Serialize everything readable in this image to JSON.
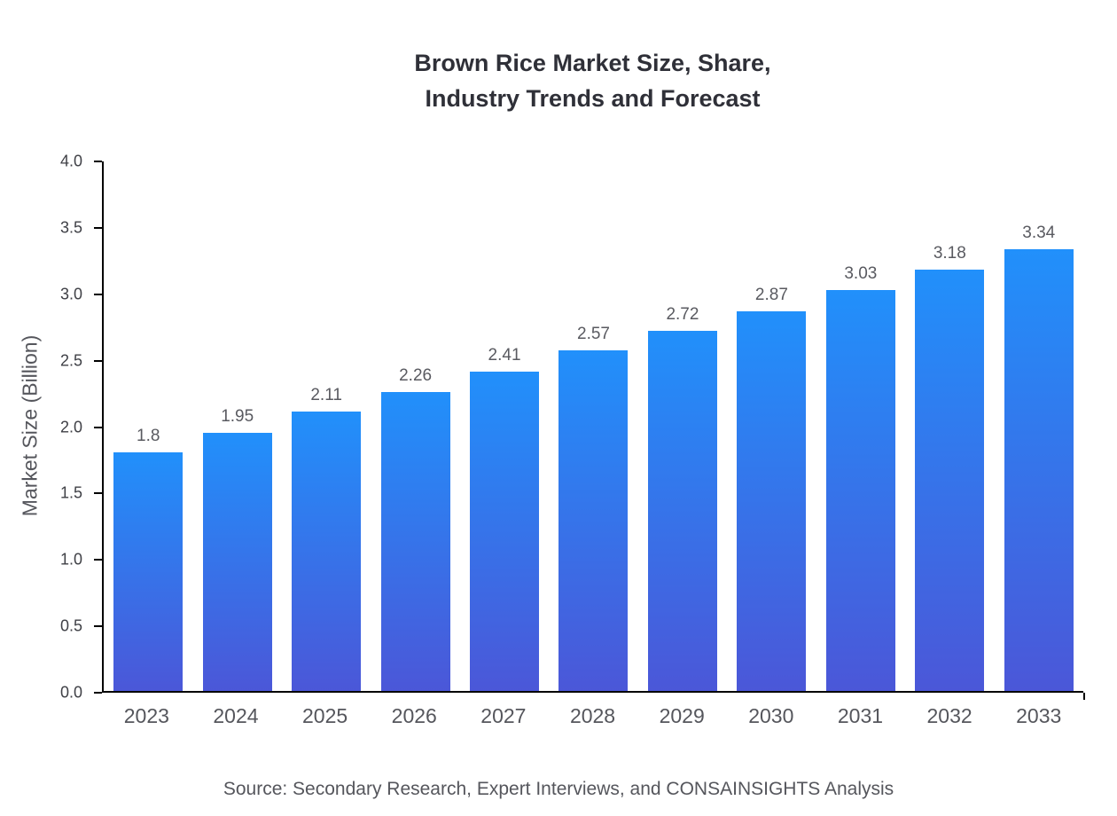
{
  "chart_data": {
    "type": "bar",
    "title": "Brown Rice Market Size, Share,\nIndustry Trends and Forecast",
    "categories": [
      "2023",
      "2024",
      "2025",
      "2026",
      "2027",
      "2028",
      "2029",
      "2030",
      "2031",
      "2032",
      "2033"
    ],
    "values": [
      1.8,
      1.95,
      2.11,
      2.26,
      2.41,
      2.57,
      2.72,
      2.87,
      3.03,
      3.18,
      3.34
    ],
    "value_labels": [
      "1.8",
      "1.95",
      "2.11",
      "2.26",
      "2.41",
      "2.57",
      "2.72",
      "2.87",
      "3.03",
      "3.18",
      "3.34"
    ],
    "xlabel": "",
    "ylabel": "Market Size (Billion)",
    "ylim": [
      0.0,
      4.0
    ],
    "yticks": [
      0.0,
      0.5,
      1.0,
      1.5,
      2.0,
      2.5,
      3.0,
      3.5,
      4.0
    ],
    "grid": false,
    "legend": "none",
    "source": "Source: Secondary Research, Expert Interviews, and CONSAINSIGHTS Analysis",
    "colors": {
      "bar_gradient_top": "#2190fb",
      "bar_gradient_bottom": "#4b57d8",
      "axis": "#000000",
      "tick_text": "#3f4046",
      "label_text": "#55565c",
      "title_text": "#2f3038"
    }
  }
}
